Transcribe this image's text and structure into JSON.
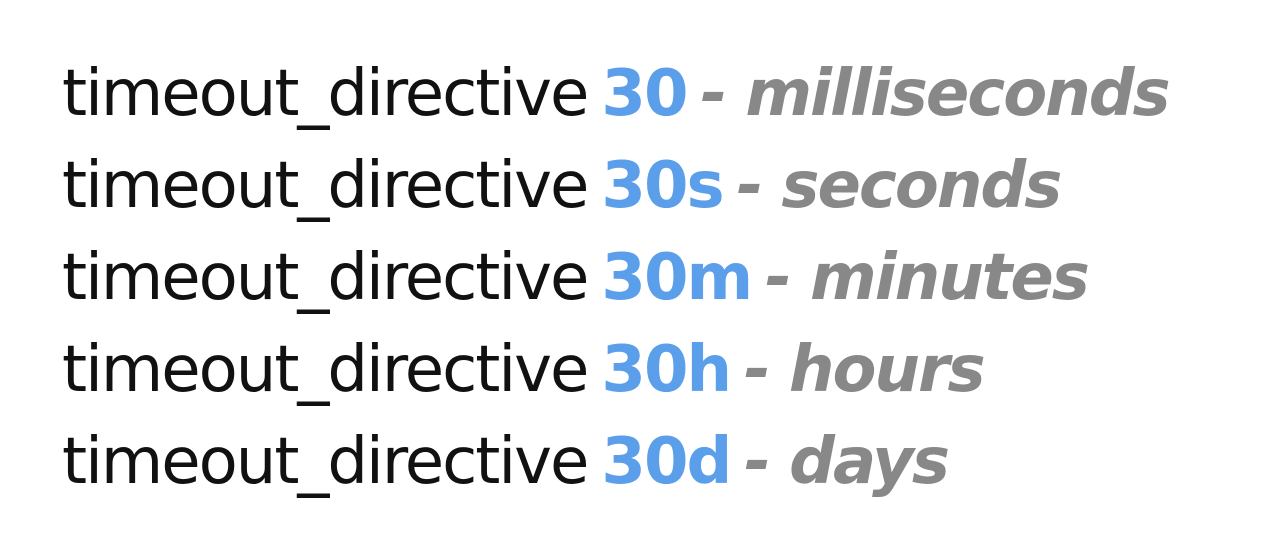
{
  "lines": [
    {
      "directive": "timeout_directive",
      "value": "30",
      "description": "- milliseconds"
    },
    {
      "directive": "timeout_directive",
      "value": "30s",
      "description": "- seconds"
    },
    {
      "directive": "timeout_directive",
      "value": "30m",
      "description": "- minutes"
    },
    {
      "directive": "timeout_directive",
      "value": "30h",
      "description": "- hours"
    },
    {
      "directive": "timeout_directive",
      "value": "30d",
      "description": "- days"
    }
  ],
  "colors": {
    "directive": "#111111",
    "value": "#5b9ee9",
    "description": "#888888",
    "background": "#ffffff"
  }
}
